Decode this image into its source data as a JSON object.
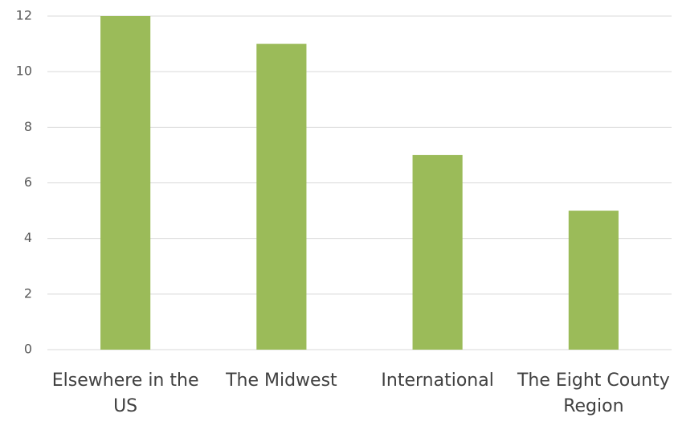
{
  "chart_data": {
    "type": "bar",
    "categories": [
      "Elsewhere in the US",
      "The Midwest",
      "International",
      "The Eight County Region"
    ],
    "values": [
      12,
      11,
      7,
      5
    ],
    "color": "#9bbb59",
    "ylim": [
      0,
      12
    ],
    "yticks": [
      0,
      2,
      4,
      6,
      8,
      10,
      12
    ],
    "grid": true
  }
}
